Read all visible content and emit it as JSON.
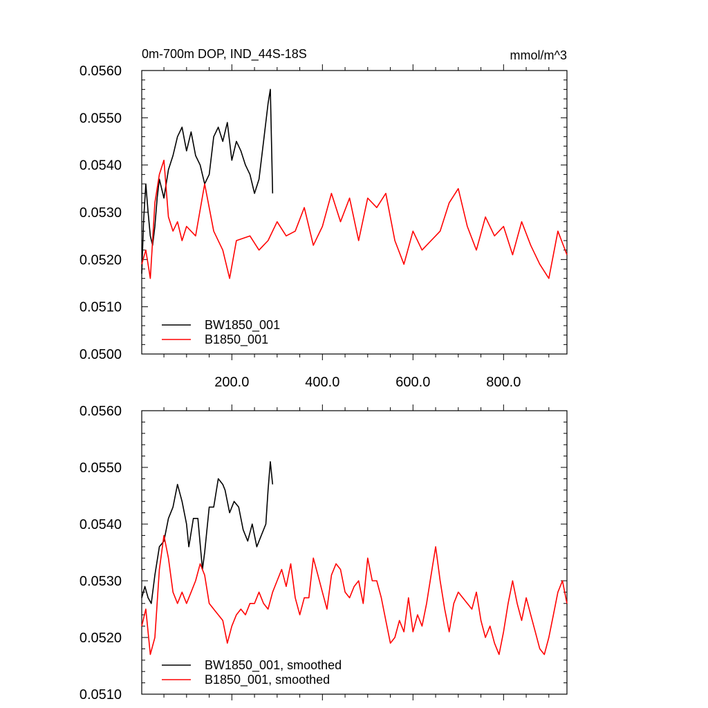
{
  "colors": {
    "series_black": "#000000",
    "series_red": "#ff0000",
    "axis": "#000000",
    "background": "#ffffff"
  },
  "chart_data": [
    {
      "type": "line",
      "title": "0m-700m DOP, IND_44S-18S",
      "units": "mmol/m^3",
      "xlim": [
        1,
        940
      ],
      "ylim": [
        0.05,
        0.056
      ],
      "x_ticks": [
        200,
        400,
        600,
        800
      ],
      "x_tick_labels": [
        "200.0",
        "400.0",
        "600.0",
        "800.0"
      ],
      "y_ticks": [
        0.05,
        0.051,
        0.052,
        0.053,
        0.054,
        0.055,
        0.056
      ],
      "y_tick_labels": [
        "0.0500",
        "0.0510",
        "0.0520",
        "0.0530",
        "0.0540",
        "0.0550",
        "0.0560"
      ],
      "grid": false,
      "legend_position": "bottom-left",
      "series": [
        {
          "name": "BW1850_001",
          "color": "#000000",
          "x": [
            1,
            5,
            10,
            15,
            20,
            25,
            30,
            35,
            40,
            50,
            60,
            70,
            80,
            90,
            100,
            110,
            120,
            130,
            140,
            150,
            160,
            170,
            180,
            190,
            200,
            210,
            220,
            230,
            240,
            250,
            260,
            270,
            280,
            285,
            290
          ],
          "y": [
            0.0517,
            0.0528,
            0.0536,
            0.053,
            0.0525,
            0.0523,
            0.0527,
            0.0533,
            0.0537,
            0.0533,
            0.0539,
            0.0542,
            0.0546,
            0.0548,
            0.0543,
            0.0547,
            0.0542,
            0.054,
            0.0536,
            0.0538,
            0.0546,
            0.0548,
            0.0545,
            0.0549,
            0.0541,
            0.0545,
            0.0543,
            0.054,
            0.0538,
            0.0534,
            0.0537,
            0.0545,
            0.0553,
            0.0556,
            0.0534
          ]
        },
        {
          "name": "B1850_001",
          "color": "#ff0000",
          "x": [
            1,
            10,
            20,
            30,
            40,
            50,
            60,
            70,
            80,
            90,
            100,
            120,
            140,
            160,
            180,
            195,
            210,
            240,
            260,
            280,
            300,
            320,
            340,
            360,
            380,
            400,
            420,
            440,
            460,
            480,
            500,
            520,
            540,
            560,
            580,
            600,
            620,
            640,
            660,
            680,
            700,
            720,
            740,
            760,
            780,
            800,
            820,
            840,
            860,
            880,
            900,
            920,
            940
          ],
          "y": [
            0.0519,
            0.0522,
            0.0516,
            0.0532,
            0.0538,
            0.0541,
            0.0529,
            0.0526,
            0.0528,
            0.0524,
            0.0527,
            0.0525,
            0.0536,
            0.0526,
            0.0522,
            0.0516,
            0.0524,
            0.0525,
            0.0522,
            0.0524,
            0.0528,
            0.0525,
            0.0526,
            0.0531,
            0.0523,
            0.0527,
            0.0534,
            0.0528,
            0.0533,
            0.0524,
            0.0533,
            0.0531,
            0.0534,
            0.0524,
            0.0519,
            0.0526,
            0.0522,
            0.0524,
            0.0526,
            0.0532,
            0.0535,
            0.0527,
            0.0522,
            0.0529,
            0.0525,
            0.0527,
            0.0521,
            0.0528,
            0.0523,
            0.0519,
            0.0516,
            0.0526,
            0.0521
          ]
        }
      ]
    },
    {
      "type": "line",
      "xlim": [
        1,
        940
      ],
      "ylim": [
        0.051,
        0.056
      ],
      "x_ticks": [
        200,
        400,
        600,
        800
      ],
      "x_tick_labels": [],
      "y_ticks": [
        0.051,
        0.052,
        0.053,
        0.054,
        0.055,
        0.056
      ],
      "y_tick_labels": [
        "0.0510",
        "0.0520",
        "0.0530",
        "0.0540",
        "0.0550",
        "0.0560"
      ],
      "grid": false,
      "legend_position": "bottom-left",
      "series": [
        {
          "name": "BW1850_001, smoothed",
          "color": "#000000",
          "x": [
            1,
            8,
            15,
            22,
            30,
            40,
            50,
            60,
            70,
            80,
            90,
            100,
            105,
            115,
            125,
            135,
            140,
            150,
            160,
            170,
            180,
            185,
            195,
            205,
            215,
            225,
            235,
            245,
            255,
            265,
            275,
            280,
            285,
            290
          ],
          "y": [
            0.0527,
            0.0529,
            0.0527,
            0.0526,
            0.0531,
            0.0536,
            0.0537,
            0.0541,
            0.0543,
            0.0547,
            0.0544,
            0.054,
            0.0536,
            0.0541,
            0.0541,
            0.0532,
            0.0535,
            0.0543,
            0.0543,
            0.0548,
            0.0547,
            0.0546,
            0.0542,
            0.0544,
            0.0543,
            0.0539,
            0.0537,
            0.054,
            0.0536,
            0.0538,
            0.054,
            0.0546,
            0.0551,
            0.0547
          ]
        },
        {
          "name": "B1850_001, smoothed",
          "color": "#ff0000",
          "x": [
            1,
            10,
            20,
            30,
            40,
            50,
            60,
            70,
            80,
            90,
            100,
            110,
            120,
            130,
            140,
            150,
            160,
            170,
            180,
            190,
            200,
            210,
            220,
            230,
            240,
            250,
            260,
            270,
            280,
            290,
            300,
            310,
            320,
            330,
            340,
            350,
            360,
            370,
            380,
            390,
            400,
            410,
            420,
            430,
            440,
            450,
            460,
            470,
            480,
            490,
            500,
            510,
            520,
            530,
            540,
            550,
            560,
            570,
            580,
            590,
            600,
            610,
            620,
            630,
            640,
            650,
            660,
            670,
            680,
            690,
            700,
            710,
            720,
            730,
            740,
            750,
            760,
            770,
            780,
            790,
            800,
            810,
            820,
            830,
            840,
            850,
            860,
            870,
            880,
            890,
            900,
            910,
            920,
            930,
            940
          ],
          "y": [
            0.0522,
            0.0525,
            0.0517,
            0.052,
            0.0532,
            0.0538,
            0.0534,
            0.0528,
            0.0526,
            0.0528,
            0.0526,
            0.0528,
            0.053,
            0.0533,
            0.0531,
            0.0526,
            0.0525,
            0.0524,
            0.0523,
            0.0519,
            0.0522,
            0.0524,
            0.0525,
            0.0524,
            0.0526,
            0.0526,
            0.0528,
            0.0526,
            0.0525,
            0.0528,
            0.053,
            0.0532,
            0.0529,
            0.0533,
            0.0527,
            0.0524,
            0.0527,
            0.0527,
            0.0534,
            0.0531,
            0.0528,
            0.0525,
            0.0531,
            0.0533,
            0.0532,
            0.0528,
            0.0527,
            0.0529,
            0.053,
            0.0526,
            0.0534,
            0.053,
            0.053,
            0.0527,
            0.0523,
            0.0519,
            0.052,
            0.0523,
            0.0521,
            0.0527,
            0.0521,
            0.0524,
            0.0522,
            0.0526,
            0.0531,
            0.0536,
            0.053,
            0.0525,
            0.0521,
            0.0526,
            0.0528,
            0.0527,
            0.0526,
            0.0525,
            0.0528,
            0.0523,
            0.052,
            0.0522,
            0.0519,
            0.0517,
            0.0521,
            0.0526,
            0.053,
            0.0526,
            0.0523,
            0.0527,
            0.0524,
            0.0521,
            0.0518,
            0.0517,
            0.052,
            0.0524,
            0.0528,
            0.053,
            0.0526
          ]
        }
      ]
    }
  ]
}
